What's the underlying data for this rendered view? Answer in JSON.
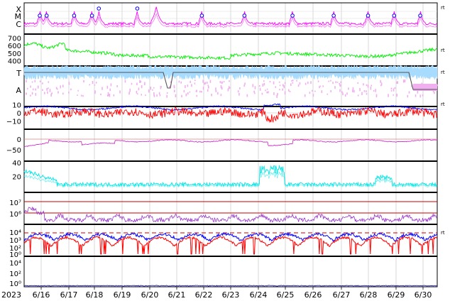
{
  "chart_data": {
    "type": "line",
    "year_label": "2023",
    "x_ticks": [
      "6/16",
      "6/17",
      "6/18",
      "6/19",
      "6/20",
      "6/21",
      "6/22",
      "6/23",
      "6/24",
      "6/25",
      "6/26",
      "6/27",
      "6/28",
      "6/29",
      "6/30"
    ],
    "right_marker": "rt",
    "colors": {
      "xray": "#ff00ff",
      "flare_marker": "#0000ff",
      "speed": "#00ee00",
      "theta_band": "#a8dcff",
      "theta_line": "#555555",
      "lat_pink": "#f0b0f0",
      "bt": "#0000ff",
      "bz": "#ff0000",
      "dst": "#cc33cc",
      "kp": "#00e5e5",
      "electron": "#9933cc",
      "proton_hi": "#0000ff",
      "proton_lo": "#ff0000",
      "neutron": "#2222aa",
      "threshold": "#cc0000"
    },
    "panels": [
      {
        "name": "xray_flux",
        "tick_labels": [
          "X",
          "M",
          "C"
        ],
        "flare_days": [
          0.35,
          0.6,
          1.6,
          2.25,
          2.5,
          3.9,
          6.25,
          7.8,
          9.55,
          11.05,
          12.3,
          13.25,
          14.2
        ]
      },
      {
        "name": "solar_wind_speed",
        "tick_labels": [
          "700",
          "600",
          "500",
          "400"
        ],
        "ylim": [
          350,
          750
        ]
      },
      {
        "name": "imf_angle",
        "tick_labels": [
          "T",
          "A"
        ]
      },
      {
        "name": "imf_bt_bz",
        "tick_labels": [
          "10",
          "0",
          "−10"
        ],
        "ylim": [
          -15,
          13
        ]
      },
      {
        "name": "dst",
        "tick_labels": [
          "0",
          "−50"
        ],
        "ylim": [
          -80,
          12
        ]
      },
      {
        "name": "kp",
        "tick_labels": [
          "40",
          "20"
        ],
        "ylim": [
          0,
          52
        ]
      },
      {
        "name": "electron_flux",
        "tick_labels": [
          "10⁷",
          "10⁶"
        ],
        "threshold_label": "10⁷"
      },
      {
        "name": "proton_flux",
        "tick_labels": [
          "10⁴",
          "10³",
          "10²",
          "10⁰"
        ]
      },
      {
        "name": "neutron",
        "tick_labels": [
          "10⁴",
          "10²",
          "10⁰"
        ]
      }
    ]
  }
}
